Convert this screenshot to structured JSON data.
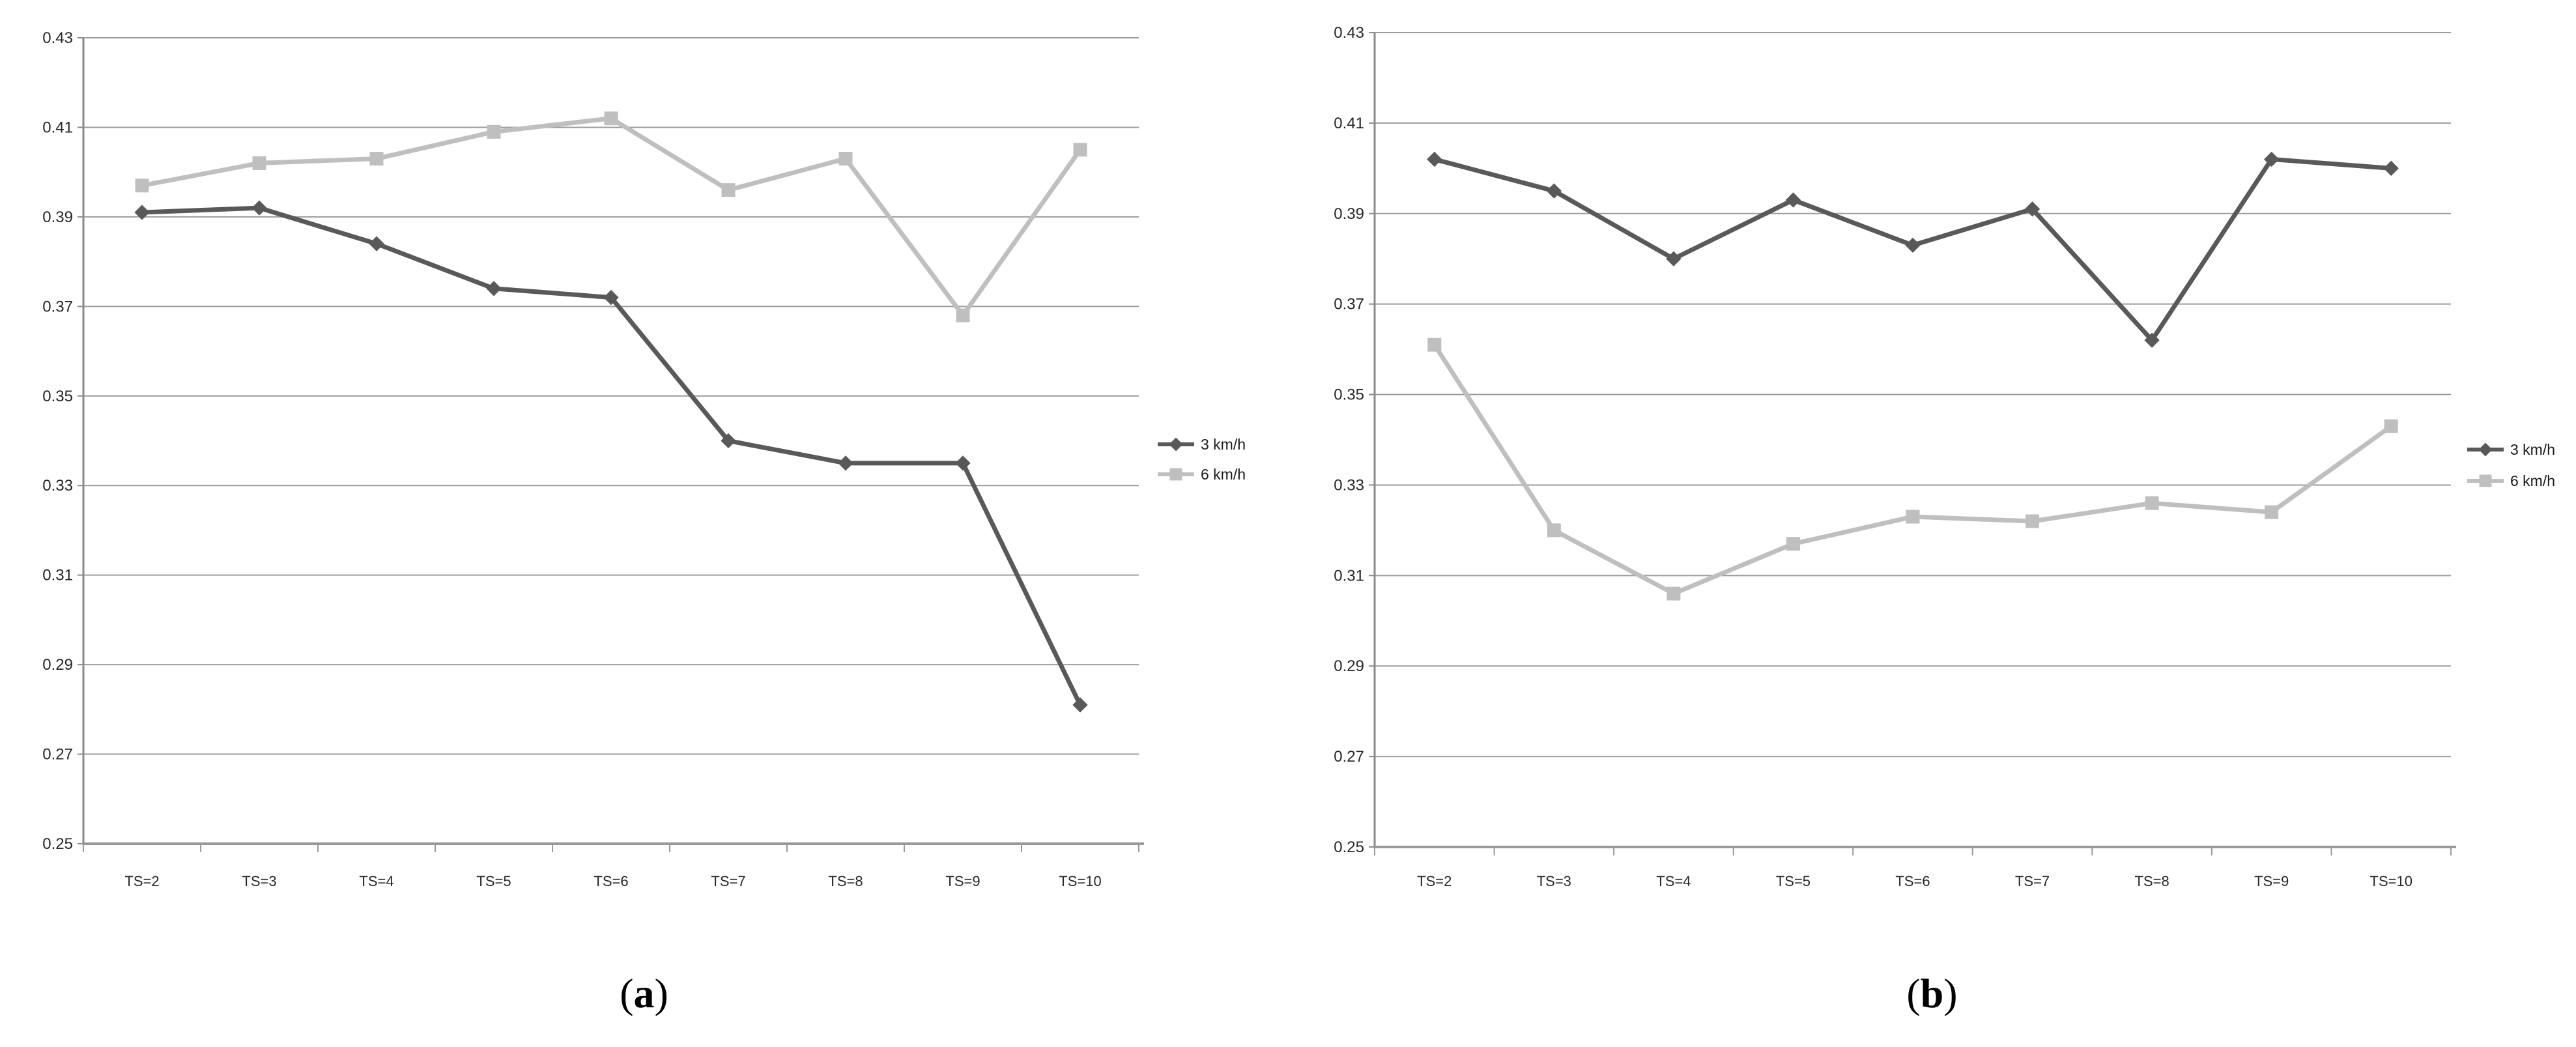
{
  "figure": {
    "panels": [
      {
        "caption": {
          "open": "(",
          "letter": "a",
          "close": ")"
        }
      },
      {
        "caption": {
          "open": "(",
          "letter": "b",
          "close": ")"
        }
      }
    ]
  },
  "colors": {
    "series_dark": "#595959",
    "series_light": "#bfbfbf",
    "gridline": "#9c9c9c",
    "y_axis": "#8a8a8a",
    "x_axis": "#999999",
    "tick_label": "#262626",
    "legend_text": "#1a1a1a",
    "background": "#ffffff"
  },
  "chart_data": [
    {
      "type": "line",
      "title": "",
      "xlabel": "",
      "ylabel": "",
      "grid": true,
      "legend_position": "right",
      "ylim": [
        0.25,
        0.43
      ],
      "ytick_step": 0.02,
      "ytick_labels": [
        "0.43",
        "0.41",
        "0.39",
        "0.37",
        "0.35",
        "0.33",
        "0.31",
        "0.29",
        "0.27",
        "0.25"
      ],
      "categories": [
        "TS=2",
        "TS=3",
        "TS=4",
        "TS=5",
        "TS=6",
        "TS=7",
        "TS=8",
        "TS=9",
        "TS=10"
      ],
      "series": [
        {
          "name": "3 km/h",
          "marker": "diamond",
          "color": "#595959",
          "values": [
            0.391,
            0.392,
            0.384,
            0.374,
            0.372,
            0.34,
            0.335,
            0.335,
            0.281
          ]
        },
        {
          "name": "6 km/h",
          "marker": "square",
          "color": "#bfbfbf",
          "values": [
            0.397,
            0.402,
            0.403,
            0.409,
            0.412,
            0.396,
            0.403,
            0.368,
            0.405
          ]
        }
      ]
    },
    {
      "type": "line",
      "title": "",
      "xlabel": "",
      "ylabel": "",
      "grid": true,
      "legend_position": "right",
      "ylim": [
        0.25,
        0.43
      ],
      "ytick_step": 0.02,
      "ytick_labels": [
        "0.43",
        "0.41",
        "0.39",
        "0.37",
        "0.35",
        "0.33",
        "0.31",
        "0.29",
        "0.27",
        "0.25"
      ],
      "categories": [
        "TS=2",
        "TS=3",
        "TS=4",
        "TS=5",
        "TS=6",
        "TS=7",
        "TS=8",
        "TS=9",
        "TS=10"
      ],
      "series": [
        {
          "name": "3 km/h",
          "marker": "diamond",
          "color": "#595959",
          "values": [
            0.402,
            0.395,
            0.38,
            0.393,
            0.383,
            0.391,
            0.362,
            0.402,
            0.4
          ]
        },
        {
          "name": "6 km/h",
          "marker": "square",
          "color": "#bfbfbf",
          "values": [
            0.361,
            0.32,
            0.306,
            0.317,
            0.323,
            0.322,
            0.326,
            0.324,
            0.343
          ]
        }
      ]
    }
  ]
}
